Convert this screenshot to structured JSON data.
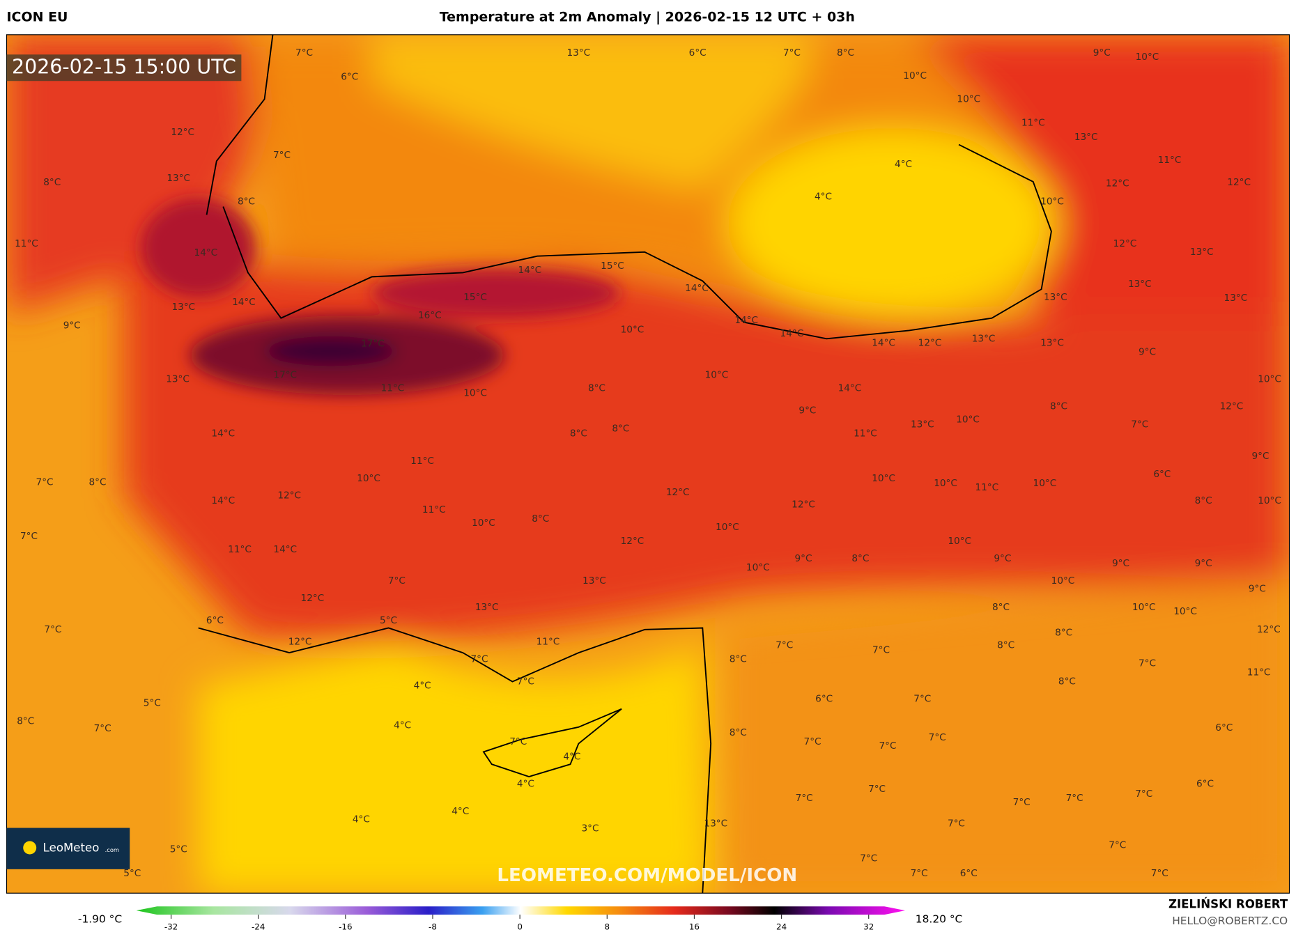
{
  "header": {
    "model": "ICON EU",
    "title": "Temperature at 2m Anomaly | 2026-02-15 12 UTC + 03h"
  },
  "timestamp": "2026-02-15 15:00 UTC",
  "logo": {
    "name": "LeoMeteo",
    "suffix": ".com"
  },
  "watermark": "LEOMETEO.COM/MODEL/ICON",
  "credits": {
    "name": "ZIELIŃSKI ROBERT",
    "email": "HELLO@ROBERTZ.CO"
  },
  "colorbar": {
    "min_label": "-1.90 °C",
    "max_label": "18.20 °C",
    "ticks": [
      -32,
      -24,
      -16,
      -8,
      0,
      8,
      16,
      24,
      32
    ]
  },
  "map_labels": [
    "7°C",
    "6°C",
    "13°C",
    "6°C",
    "7°C",
    "8°C",
    "9°C",
    "10°C",
    "10°C",
    "10°C",
    "11°C",
    "13°C",
    "12°C",
    "7°C",
    "11°C",
    "4°C",
    "13°C",
    "8°C",
    "12°C",
    "12°C",
    "4°C",
    "8°C",
    "10°C",
    "11°C",
    "12°C",
    "14°C",
    "13°C",
    "14°C",
    "15°C",
    "14°C",
    "13°C",
    "15°C",
    "13°C",
    "13°C",
    "13°C",
    "14°C",
    "16°C",
    "14°C",
    "9°C",
    "10°C",
    "14°C",
    "17°C",
    "14°C",
    "12°C",
    "13°C",
    "13°C",
    "9°C",
    "17°C",
    "10°C",
    "10°C",
    "13°C",
    "11°C",
    "14°C",
    "10°C",
    "8°C",
    "9°C",
    "8°C",
    "12°C",
    "8°C",
    "8°C",
    "13°C",
    "10°C",
    "7°C",
    "14°C",
    "11°C",
    "9°C",
    "11°C",
    "6°C",
    "7°C",
    "8°C",
    "10°C",
    "10°C",
    "10°C",
    "11°C",
    "10°C",
    "12°C",
    "12°C",
    "14°C",
    "8°C",
    "10°C",
    "11°C",
    "12°C",
    "10°C",
    "8°C",
    "10°C",
    "7°C",
    "12°C",
    "10°C",
    "11°C",
    "14°C",
    "9°C",
    "9°C",
    "8°C",
    "9°C",
    "9°C",
    "10°C",
    "7°C",
    "13°C",
    "10°C",
    "9°C",
    "12°C",
    "13°C",
    "8°C",
    "10°C",
    "10°C",
    "6°C",
    "5°C",
    "7°C",
    "8°C",
    "12°C",
    "12°C",
    "11°C",
    "7°C",
    "7°C",
    "8°C",
    "7°C",
    "8°C",
    "7°C",
    "11°C",
    "7°C",
    "8°C",
    "4°C",
    "6°C",
    "7°C",
    "5°C",
    "4°C",
    "6°C",
    "8°C",
    "7°C",
    "8°C",
    "7°C",
    "7°C",
    "4°C",
    "7°C",
    "7°C",
    "4°C",
    "6°C",
    "7°C",
    "7°C",
    "7°C",
    "7°C",
    "7°C",
    "4°C",
    "4°C",
    "3°C",
    "13°C",
    "7°C",
    "5°C",
    "7°C",
    "7°C",
    "5°C",
    "7°C",
    "6°C",
    "7°C"
  ]
}
